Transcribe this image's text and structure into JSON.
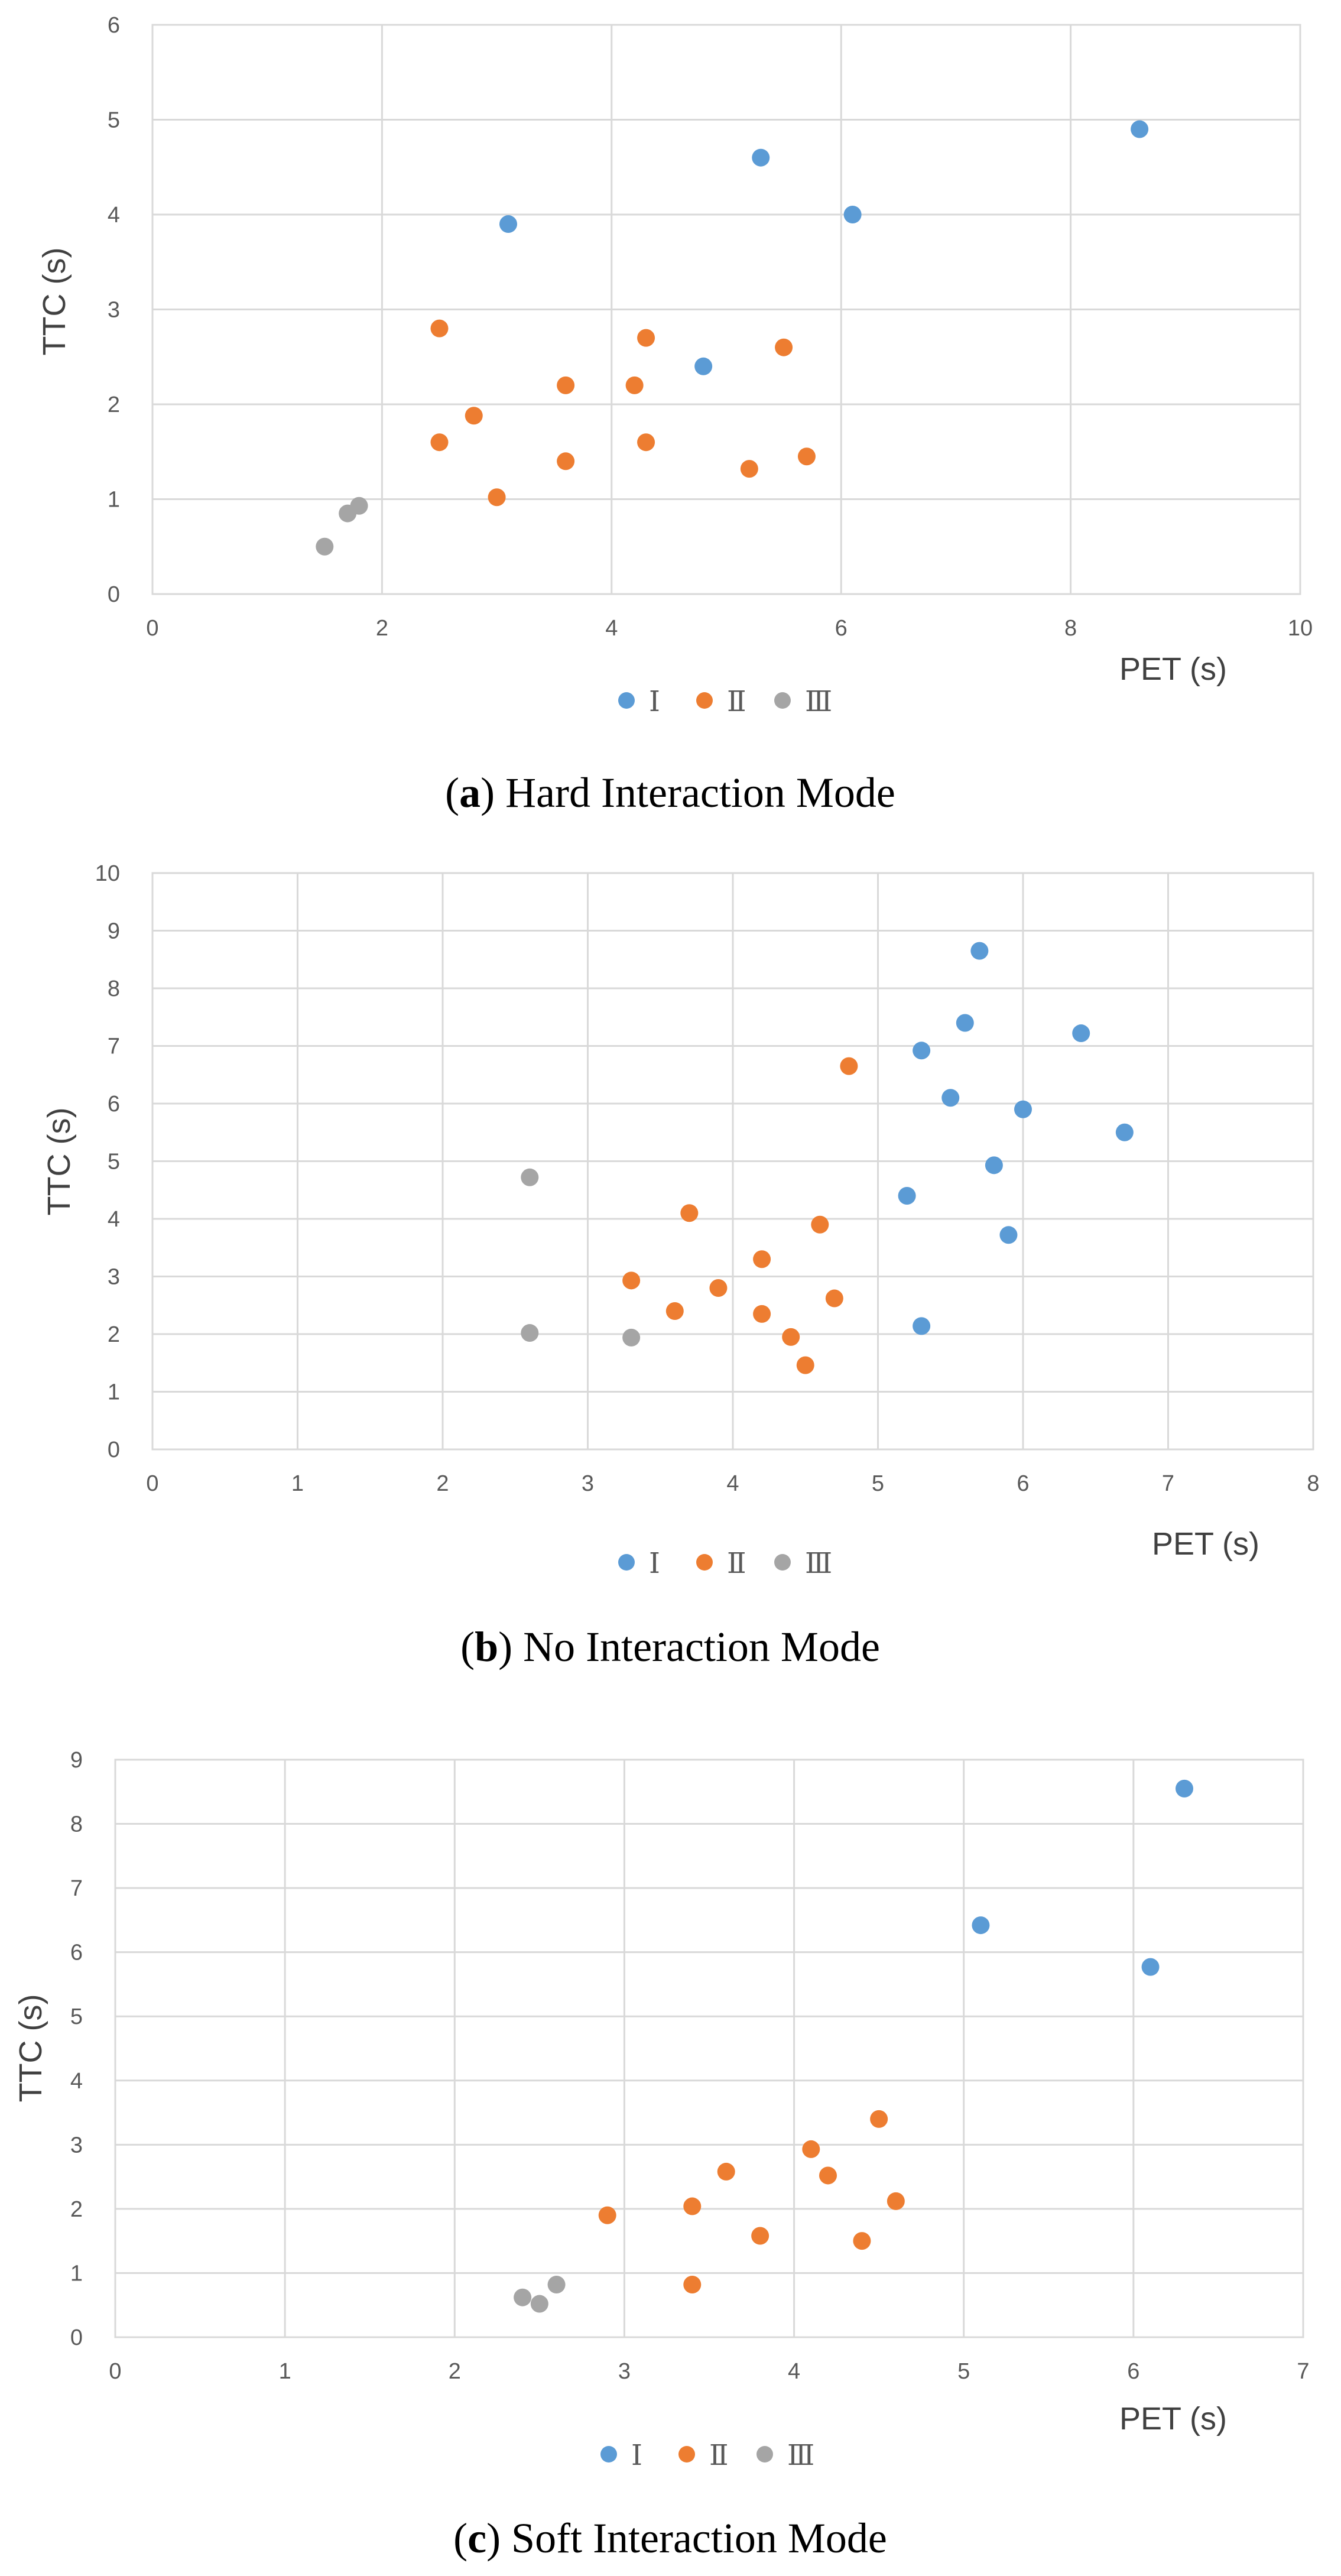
{
  "colors": {
    "I": "#5b9bd5",
    "II": "#ed7d31",
    "III": "#a5a5a5"
  },
  "chart_data": [
    {
      "type": "scatter",
      "xlabel": "PET (s)",
      "ylabel": "TTC (s)",
      "xlim": [
        0,
        10
      ],
      "ylim": [
        0,
        6
      ],
      "xticks": [
        "0",
        "2",
        "4",
        "6",
        "8",
        "10"
      ],
      "yticks": [
        "0",
        "1",
        "2",
        "3",
        "4",
        "5",
        "6"
      ],
      "legend": [
        "Ⅰ",
        "Ⅱ",
        "Ⅲ"
      ],
      "caption": {
        "open": "(",
        "letter": "a",
        "rest": ") Hard Interaction Mode"
      },
      "series": [
        {
          "name": "Ⅰ",
          "x": [
            3.1,
            4.8,
            5.3,
            6.1,
            8.6
          ],
          "y": [
            3.9,
            2.4,
            4.6,
            4.0,
            4.9
          ]
        },
        {
          "name": "Ⅱ",
          "x": [
            2.5,
            2.5,
            2.8,
            3.0,
            3.6,
            3.6,
            4.2,
            4.3,
            4.3,
            5.2,
            5.5,
            5.7
          ],
          "y": [
            2.8,
            1.6,
            1.88,
            1.02,
            2.2,
            1.4,
            2.2,
            2.7,
            1.6,
            1.32,
            2.6,
            1.45
          ]
        },
        {
          "name": "Ⅲ",
          "x": [
            1.5,
            1.7,
            1.8
          ],
          "y": [
            0.5,
            0.85,
            0.93
          ]
        }
      ]
    },
    {
      "type": "scatter",
      "xlabel": "PET (s)",
      "ylabel": "TTC (s)",
      "xlim": [
        0,
        8
      ],
      "ylim": [
        0,
        10
      ],
      "xticks": [
        "0",
        "1",
        "2",
        "3",
        "4",
        "5",
        "6",
        "7",
        "8"
      ],
      "yticks": [
        "0",
        "1",
        "2",
        "3",
        "4",
        "5",
        "6",
        "7",
        "8",
        "9",
        "10"
      ],
      "legend": [
        "Ⅰ",
        "Ⅱ",
        "Ⅲ"
      ],
      "caption": {
        "open": "(",
        "letter": "b",
        "rest": ") No Interaction Mode"
      },
      "series": [
        {
          "name": "Ⅰ",
          "x": [
            5.7,
            5.6,
            6.4,
            5.3,
            5.5,
            6.0,
            6.7,
            5.8,
            5.2,
            5.9,
            5.3
          ],
          "y": [
            8.65,
            7.4,
            7.22,
            6.92,
            6.1,
            5.9,
            5.5,
            4.93,
            4.4,
            3.72,
            2.14
          ]
        },
        {
          "name": "Ⅱ",
          "x": [
            4.8,
            3.7,
            4.6,
            4.2,
            3.3,
            3.9,
            4.7,
            3.6,
            4.2,
            4.4,
            4.5
          ],
          "y": [
            6.65,
            4.1,
            3.9,
            3.3,
            2.93,
            2.8,
            2.62,
            2.4,
            2.35,
            1.95,
            1.46
          ]
        },
        {
          "name": "Ⅲ",
          "x": [
            2.6,
            2.6,
            3.3
          ],
          "y": [
            4.72,
            2.02,
            1.94
          ]
        }
      ]
    },
    {
      "type": "scatter",
      "xlabel": "PET (s)",
      "ylabel": "TTC (s)",
      "xlim": [
        0,
        7
      ],
      "ylim": [
        0,
        9
      ],
      "xticks": [
        "0",
        "1",
        "2",
        "3",
        "4",
        "5",
        "6",
        "7"
      ],
      "yticks": [
        "0",
        "1",
        "2",
        "3",
        "4",
        "5",
        "6",
        "7",
        "8",
        "9"
      ],
      "legend": [
        "Ⅰ",
        "Ⅱ",
        "Ⅲ"
      ],
      "caption": {
        "open": "(",
        "letter": "c",
        "rest": ") Soft Interaction Mode"
      },
      "series": [
        {
          "name": "Ⅰ",
          "x": [
            6.3,
            5.1,
            6.1
          ],
          "y": [
            8.55,
            6.42,
            5.77
          ]
        },
        {
          "name": "Ⅱ",
          "x": [
            4.5,
            4.1,
            3.6,
            4.2,
            4.6,
            3.4,
            2.9,
            3.8,
            4.4,
            3.4
          ],
          "y": [
            3.4,
            2.93,
            2.58,
            2.52,
            2.12,
            2.04,
            1.9,
            1.58,
            1.5,
            0.82
          ]
        },
        {
          "name": "Ⅲ",
          "x": [
            2.6,
            2.4,
            2.5
          ],
          "y": [
            0.82,
            0.62,
            0.52
          ]
        }
      ]
    }
  ]
}
